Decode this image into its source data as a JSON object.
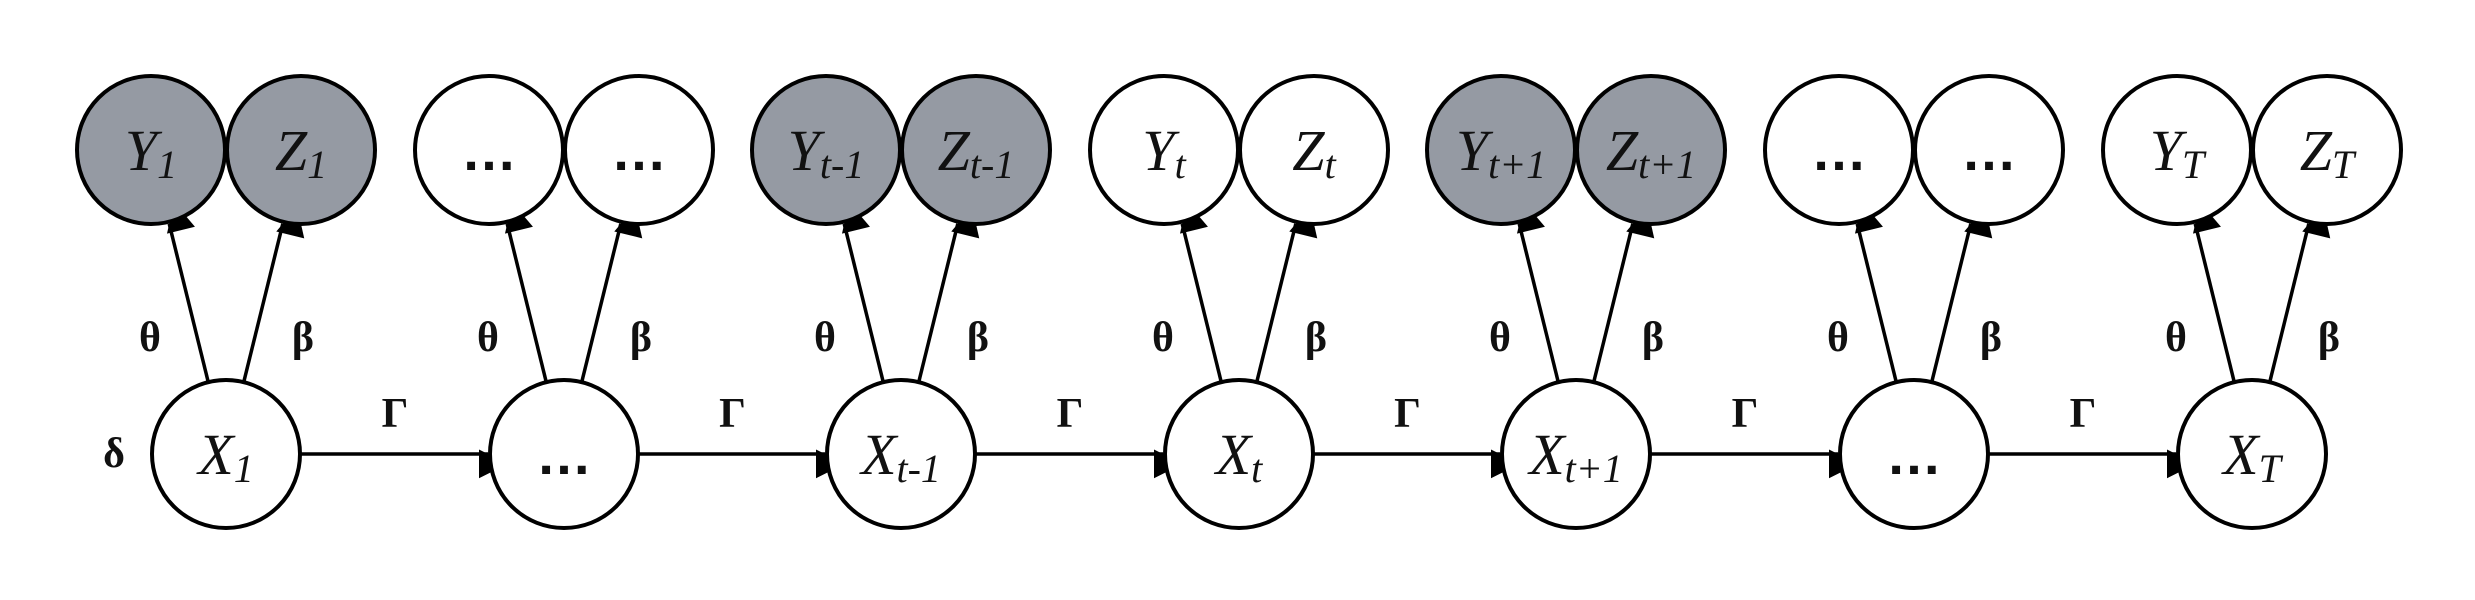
{
  "colors": {
    "observed_fill": "#959aa3",
    "latent_fill": "#ffffff",
    "stroke": "#000000"
  },
  "initial_label": "δ",
  "transition_label": "Γ",
  "emission_labels": {
    "y": "θ",
    "z": "β"
  },
  "time_slices": [
    {
      "x": {
        "main": "X",
        "sub": "1"
      },
      "y": {
        "main": "Y",
        "sub": "1"
      },
      "z": {
        "main": "Z",
        "sub": "1"
      },
      "observed": true
    },
    {
      "x": {
        "main": "…",
        "sub": ""
      },
      "y": {
        "main": "…",
        "sub": ""
      },
      "z": {
        "main": "…",
        "sub": ""
      },
      "observed": false
    },
    {
      "x": {
        "main": "X",
        "sub": "t-1"
      },
      "y": {
        "main": "Y",
        "sub": "t-1"
      },
      "z": {
        "main": "Z",
        "sub": "t-1"
      },
      "observed": true
    },
    {
      "x": {
        "main": "X",
        "sub": "t"
      },
      "y": {
        "main": "Y",
        "sub": "t"
      },
      "z": {
        "main": "Z",
        "sub": "t"
      },
      "observed": false
    },
    {
      "x": {
        "main": "X",
        "sub": "t+1"
      },
      "y": {
        "main": "Y",
        "sub": "t+1"
      },
      "z": {
        "main": "Z",
        "sub": "t+1"
      },
      "observed": true
    },
    {
      "x": {
        "main": "…",
        "sub": ""
      },
      "y": {
        "main": "…",
        "sub": ""
      },
      "z": {
        "main": "…",
        "sub": ""
      },
      "observed": false
    },
    {
      "x": {
        "main": "X",
        "sub": "T"
      },
      "y": {
        "main": "Y",
        "sub": "T"
      },
      "z": {
        "main": "Z",
        "sub": "T"
      },
      "observed": false
    }
  ]
}
